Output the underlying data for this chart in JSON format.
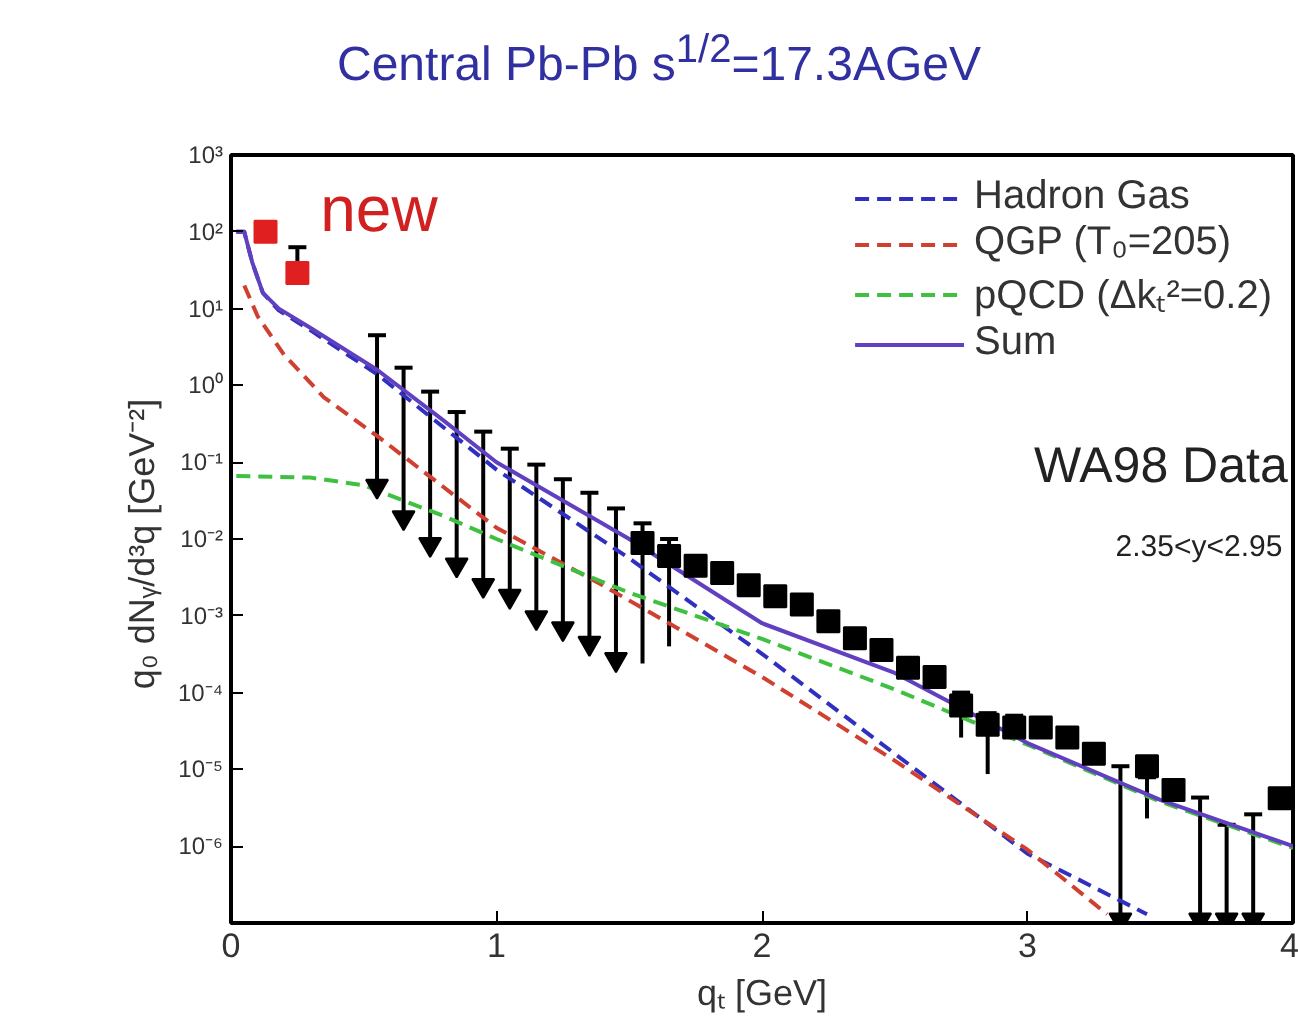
{
  "chart_data": {
    "type": "line",
    "title": "Central Pb-Pb  s$^{1/2}$=17.3AGeV",
    "xlabel": "qₜ [GeV]",
    "ylabel": "q₀ dNᵧ/d³q  [GeV⁻²]",
    "log": "y",
    "xlim": [
      0,
      4
    ],
    "ylim": [
      1e-07,
      1000
    ],
    "xticks": [
      0,
      1,
      2,
      3,
      4
    ],
    "yticks": [
      {
        "value": 1000,
        "label": "10³"
      },
      {
        "value": 100,
        "label": "10²"
      },
      {
        "value": 10,
        "label": "10¹"
      },
      {
        "value": 1,
        "label": "10⁰"
      },
      {
        "value": 0.1,
        "label": "10⁻¹"
      },
      {
        "value": 0.01,
        "label": "10⁻²"
      },
      {
        "value": 0.001,
        "label": "10⁻³"
      },
      {
        "value": 0.0001,
        "label": "10⁻⁴"
      },
      {
        "value": 1e-05,
        "label": "10⁻⁵"
      },
      {
        "value": 1e-06,
        "label": "10⁻⁶"
      }
    ],
    "legend": "top right",
    "grid": false,
    "series": [
      {
        "name": "Hadron Gas",
        "color": "#3030c0",
        "line_style": "dashed",
        "x": [
          0.02,
          0.05,
          0.08,
          0.12,
          0.18,
          0.3,
          0.55,
          1.0,
          1.5,
          2.0,
          2.5,
          3.0,
          3.45
        ],
        "values": [
          100,
          100,
          40,
          16,
          9.5,
          5.2,
          1.4,
          0.08,
          0.0056,
          0.00032,
          1.6e-05,
          8e-07,
          1.3e-07
        ]
      },
      {
        "name": "QGP (T₀=205)",
        "color": "#d04030",
        "line_style": "dashed",
        "x": [
          0.05,
          0.1,
          0.2,
          0.35,
          0.55,
          1.0,
          1.4,
          2.0,
          2.5,
          3.0,
          3.3
        ],
        "values": [
          20,
          8,
          2.5,
          0.7,
          0.22,
          0.014,
          0.0025,
          0.00016,
          1.3e-05,
          9e-07,
          1.3e-07
        ]
      },
      {
        "name": "pQCD (Δkₜ²=0.2)",
        "color": "#40c040",
        "line_style": "dashed",
        "x": [
          0.02,
          0.3,
          0.5,
          0.8,
          1.0,
          1.5,
          2.0,
          2.5,
          3.0,
          3.5,
          4.0
        ],
        "values": [
          0.066,
          0.063,
          0.05,
          0.02,
          0.01,
          0.002,
          0.0005,
          0.00011,
          2.1e-05,
          3.8e-06,
          9.5e-07
        ]
      },
      {
        "name": "Sum",
        "color": "#6040c0",
        "line_style": "solid",
        "x": [
          0.02,
          0.05,
          0.08,
          0.12,
          0.18,
          0.3,
          0.55,
          0.8,
          1.0,
          1.5,
          2.0,
          2.5,
          3.0,
          3.5,
          4.0
        ],
        "values": [
          100,
          100,
          40,
          16,
          10,
          5.6,
          1.6,
          0.35,
          0.1,
          0.01,
          0.0008,
          0.00018,
          2.2e-05,
          4e-06,
          1e-06
        ]
      },
      {
        "type": "scatter",
        "marker": "square",
        "color": "#e02020",
        "x": [
          0.13,
          0.25
        ],
        "values": [
          100,
          29
        ],
        "errors": [
          null,
          [
            21,
            63
          ]
        ]
      },
      {
        "type": "scatter",
        "marker": "triangle",
        "color": "#000000",
        "x": [
          0.55,
          0.65,
          0.75,
          0.85,
          0.95,
          1.05,
          1.15,
          1.25,
          1.35,
          1.45,
          3.35,
          3.65,
          3.75,
          3.85
        ],
        "values": [
          0.049,
          0.019,
          0.0085,
          0.0046,
          0.0025,
          0.0018,
          0.00095,
          0.00068,
          0.00044,
          0.00027,
          1.1e-07,
          1.1e-07,
          1.1e-07,
          1.1e-07
        ],
        "errors": [
          [
            0.049,
            4.5
          ],
          [
            0.019,
            1.7
          ],
          [
            0.0085,
            0.83
          ],
          [
            0.0046,
            0.45
          ],
          [
            0.0025,
            0.25
          ],
          [
            0.0018,
            0.15
          ],
          [
            0.00095,
            0.093
          ],
          [
            0.00068,
            0.06
          ],
          [
            0.00044,
            0.04
          ],
          [
            0.00027,
            0.025
          ],
          [
            1.1e-07,
            1.1e-05
          ],
          [
            1.1e-07,
            4.3e-06
          ],
          [
            1.1e-07,
            1.9e-06
          ],
          [
            1.1e-07,
            2.6e-06
          ]
        ]
      },
      {
        "type": "scatter",
        "marker": "square",
        "color": "#000000",
        "x": [
          1.55,
          1.65,
          1.75,
          1.85,
          1.95,
          2.05,
          2.15,
          2.25,
          2.35,
          2.45,
          2.55,
          2.65,
          2.75,
          2.85,
          2.95,
          3.05,
          3.15,
          3.25,
          3.45,
          3.55,
          3.95
        ],
        "values": [
          0.0089,
          0.006,
          0.0045,
          0.0036,
          0.0025,
          0.0018,
          0.0014,
          0.00085,
          0.00051,
          0.00036,
          0.00021,
          0.00016,
          6.8e-05,
          3.8e-05,
          3.5e-05,
          3.5e-05,
          2.6e-05,
          1.6e-05,
          1.1e-05,
          5.4e-06,
          4.2e-06
        ],
        "errors": [
          [
            0.00024,
            0.016
          ],
          [
            0.0004,
            0.01
          ],
          null,
          null,
          null,
          null,
          null,
          null,
          null,
          null,
          null,
          null,
          [
            2.6e-05,
            0.0001
          ],
          [
            8.7e-06,
            5.4e-05
          ],
          [
            2.5e-05,
            5e-05
          ],
          null,
          null,
          null,
          [
            2.3e-06,
            7.9e-06
          ],
          null,
          null
        ]
      }
    ],
    "annotations": [
      "new",
      "WA98 Data",
      "2.35<y<2.95"
    ]
  }
}
